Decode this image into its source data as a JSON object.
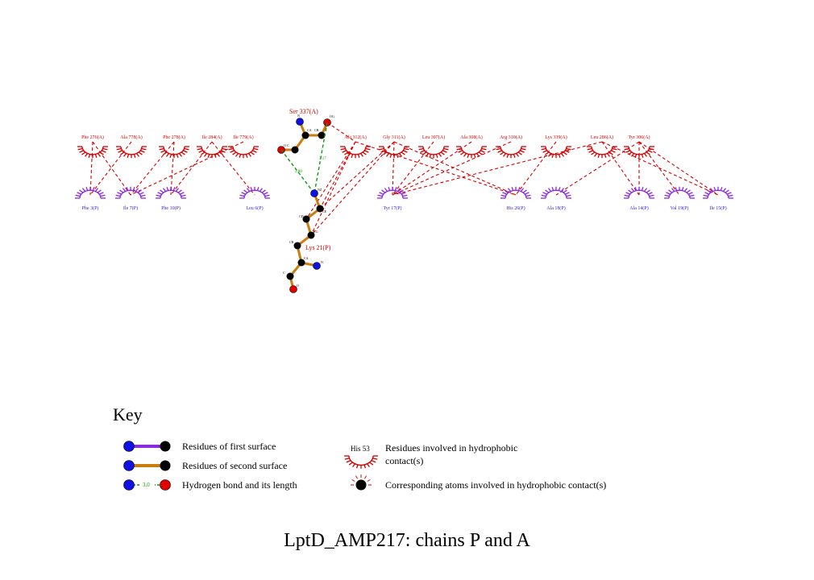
{
  "title": "LptD_AMP217: chains P and A",
  "colors": {
    "chain_a_residue": "#d40000",
    "chain_p_residue": "#8a2be2",
    "hydrophobic_contact": "#d40000",
    "hbond": "#0a9a0a",
    "bond_second_surface": "#c87d0e",
    "bond_first_surface": "#8a2be2",
    "atom_c": "#000000",
    "atom_n": "#1010e0",
    "atom_o": "#e00000"
  },
  "residues_a": [
    {
      "label": "Phe 276(A)"
    },
    {
      "label": "Ala 778(A)"
    },
    {
      "label": "Phe 278(A)"
    },
    {
      "label": "Ile 284(A)"
    },
    {
      "label": "Ile 779(A)"
    },
    {
      "label": "Ala 312(A)"
    },
    {
      "label": "Gly 311(A)"
    },
    {
      "label": "Leu 307(A)"
    },
    {
      "label": "Ala 308(A)"
    },
    {
      "label": "Arg 310(A)"
    },
    {
      "label": "Lys 339(A)"
    },
    {
      "label": "Leu 286(A)"
    },
    {
      "label": "Tyr 306(A)"
    }
  ],
  "residues_p": [
    {
      "label": "Phe 3(P)"
    },
    {
      "label": "Ile 7(P)"
    },
    {
      "label": "Phe 10(P)"
    },
    {
      "label": "Leu 6(P)"
    },
    {
      "label": "Tyr 17(P)"
    },
    {
      "label": "His 26(P)"
    },
    {
      "label": "Ala 18(P)"
    },
    {
      "label": "Ala 14(P)"
    },
    {
      "label": "Val 19(P)"
    },
    {
      "label": "Ile 15(P)"
    }
  ],
  "ser_label": "Ser 337(A)",
  "lys_label": "Lys 21(P)",
  "ser_atoms": [
    "N",
    "CA",
    "CB",
    "OG",
    "O",
    "C"
  ],
  "lys_atoms": [
    "NZ",
    "CE",
    "CD",
    "CG",
    "CB",
    "CA",
    "N",
    "C",
    "O"
  ],
  "hbonds": [
    "2.80",
    "2.17"
  ],
  "key": {
    "title": "Key",
    "first_surface": "Residues of first surface",
    "second_surface": "Residues of second surface",
    "hbond": "Hydrogen bond and its length",
    "hbond_example": "3.0",
    "hydrophobic_example": "His 53",
    "hydrophobic_line1": "Residues involved in hydrophobic",
    "hydrophobic_line2": "contact(s)",
    "corresponding": "Corresponding atoms involved in hydrophobic contact(s)"
  }
}
